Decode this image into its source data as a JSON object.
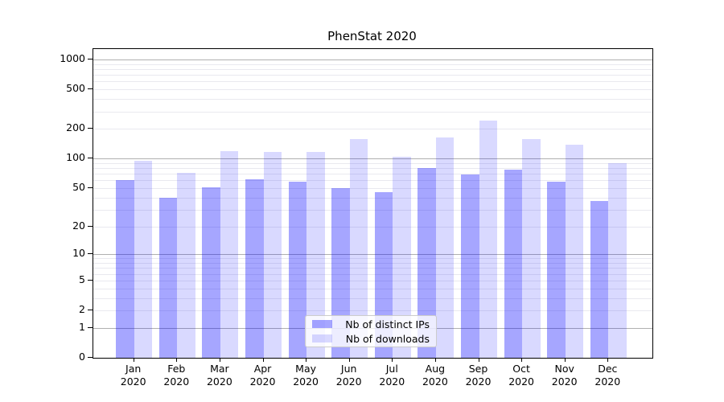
{
  "figure": {
    "title": "PhenStat 2020"
  },
  "legend": {
    "item1": "Nb of distinct IPs",
    "item2": "Nb of downloads"
  },
  "chart_data": {
    "type": "bar",
    "title": "PhenStat 2020",
    "categories": [
      "Jan",
      "Feb",
      "Mar",
      "Apr",
      "May",
      "Jun",
      "Jul",
      "Aug",
      "Sep",
      "Oct",
      "Nov",
      "Dec"
    ],
    "year_label": "2020",
    "series": [
      {
        "name": "Nb of distinct IPs",
        "key": "distinct-ips",
        "color": "rgba(0,0,255,0.35)",
        "values": [
          60,
          40,
          51,
          62,
          58,
          50,
          45,
          80,
          69,
          77,
          58,
          37
        ]
      },
      {
        "name": "Nb of downloads",
        "key": "downloads",
        "color": "rgba(0,0,255,0.15)",
        "values": [
          94,
          71,
          119,
          116,
          117,
          158,
          105,
          164,
          240,
          158,
          138,
          90
        ]
      }
    ],
    "yscale": "log1p",
    "ylim": [
      0,
      1278
    ],
    "ytick_labels": [
      1000,
      500,
      200,
      100,
      50,
      20,
      10,
      5,
      2,
      1,
      0
    ],
    "grid_major": [
      1,
      10,
      100,
      1000
    ],
    "grid_minor": [
      2,
      3,
      4,
      5,
      6,
      7,
      8,
      9,
      20,
      30,
      40,
      50,
      60,
      70,
      80,
      90,
      200,
      300,
      400,
      500,
      600,
      700,
      800,
      900
    ],
    "grid": "on",
    "legend_position": "lower center",
    "colors": {
      "grid_major": "#b0b0b0",
      "grid_minor": "#e9e9ef",
      "spine": "#000000",
      "text": "#000000",
      "background": "#ffffff"
    }
  }
}
